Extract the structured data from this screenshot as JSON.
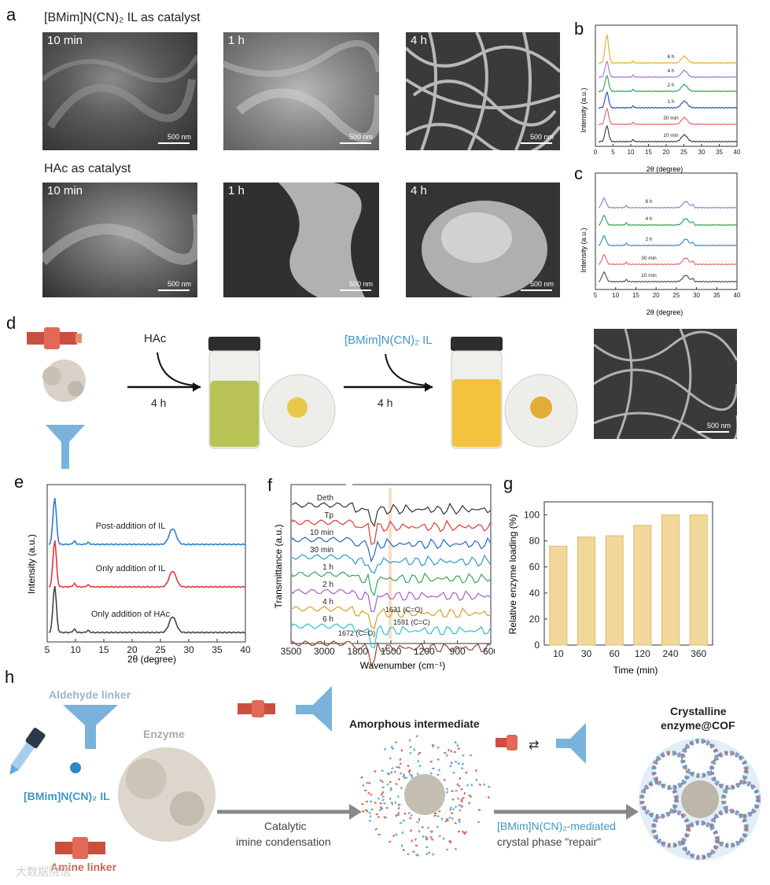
{
  "panels": {
    "a": "a",
    "b": "b",
    "c": "c",
    "d": "d",
    "e": "e",
    "f": "f",
    "g": "g",
    "h": "h"
  },
  "panel_a": {
    "row1_title": "[BMim]N(CN)₂ IL as catalyst",
    "row2_title": "HAc as catalyst",
    "row1_times": [
      "10 min",
      "1 h",
      "4 h"
    ],
    "row2_times": [
      "10 min",
      "1 h",
      "4 h"
    ],
    "scale_bar": "500 nm"
  },
  "panel_d": {
    "step1_reagent": "HAc",
    "step1_time": "4 h",
    "step2_reagent": "[BMim]N(CN)₂ IL",
    "step2_time": "4 h",
    "scale_bar": "500 nm"
  },
  "panel_h": {
    "aldehyde_label": "Aldehyde linker",
    "enzyme_label": "Enzyme",
    "il_label": "[BMim]N(CN)₂ IL",
    "amine_label": "Amine linker",
    "amorphous_label": "Amorphous intermediate",
    "crystalline_label_1": "Crystalline",
    "crystalline_label_2": "enzyme@COF",
    "arrow1_line1": "Catalytic",
    "arrow1_line2": "imine condensation",
    "arrow2_line1": "[BMim]N(CN)₂-mediated",
    "arrow2_line2": "crystal phase \"repair\"",
    "watermark": "大数据院信"
  },
  "chart_data": [
    {
      "id": "b",
      "type": "line",
      "xlabel": "2θ (degree)",
      "ylabel": "Intensity (a.u.)",
      "xlim": [
        0,
        40
      ],
      "xticks": [
        "0",
        "5",
        "10",
        "15",
        "20",
        "25",
        "30",
        "35",
        "40"
      ],
      "series": [
        {
          "name": "10 min",
          "color": "#444444"
        },
        {
          "name": "30 min",
          "color": "#e46f6f"
        },
        {
          "name": "1 h",
          "color": "#2f4fc9"
        },
        {
          "name": "2 h",
          "color": "#3aa65a"
        },
        {
          "name": "4 h",
          "color": "#a87ad6"
        },
        {
          "name": "6 h",
          "color": "#e3b23c"
        }
      ]
    },
    {
      "id": "c",
      "type": "line",
      "xlabel": "2θ (degree)",
      "ylabel": "Intensity (a.u.)",
      "xlim": [
        3,
        40
      ],
      "xticks": [
        "5",
        "10",
        "15",
        "20",
        "25",
        "30",
        "35",
        "40"
      ],
      "series": [
        {
          "name": "10 min",
          "color": "#555555"
        },
        {
          "name": "30 min",
          "color": "#e46f6f"
        },
        {
          "name": "2 h",
          "color": "#3c8fd0"
        },
        {
          "name": "4 h",
          "color": "#3aa65a"
        },
        {
          "name": "6 h",
          "color": "#a87ad6"
        }
      ]
    },
    {
      "id": "e",
      "type": "line",
      "xlabel": "2θ (degree)",
      "ylabel": "Intensity (a.u.)",
      "xlim": [
        3,
        40
      ],
      "xticks": [
        "5",
        "10",
        "15",
        "20",
        "25",
        "30",
        "35",
        "40"
      ],
      "series": [
        {
          "name": "Only addition of HAc",
          "color": "#444444"
        },
        {
          "name": "Only addition of IL",
          "color": "#e0393a"
        },
        {
          "name": "Post-addition of IL",
          "color": "#2a7fd0"
        }
      ]
    },
    {
      "id": "f",
      "type": "line",
      "xlabel": "Wavenumber (cm⁻¹)",
      "ylabel": "Transmittance (a.u.)",
      "xticks": [
        "3500",
        "3000",
        "1800",
        "1500",
        "1200",
        "900",
        "600"
      ],
      "series": [
        {
          "name": "Deth",
          "color": "#333333"
        },
        {
          "name": "Tp",
          "color": "#e0393a"
        },
        {
          "name": "10 min",
          "color": "#2a64c9"
        },
        {
          "name": "30 min",
          "color": "#2e9ad2"
        },
        {
          "name": "1 h",
          "color": "#3aa65a"
        },
        {
          "name": "2 h",
          "color": "#a060d0"
        },
        {
          "name": "4 h",
          "color": "#d9a020"
        },
        {
          "name": "6 h",
          "color": "#2cc4c4"
        },
        {
          "name": "",
          "color": "#8a4a3a"
        }
      ],
      "annotations": [
        "1672 (C=O)",
        "1631 (C=O)",
        "1591 (C=C)"
      ]
    },
    {
      "id": "g",
      "type": "bar",
      "xlabel": "Time (min)",
      "ylabel": "Relative  enzyme loading (%)",
      "categories": [
        "10",
        "30",
        "60",
        "120",
        "240",
        "360"
      ],
      "values": [
        76,
        83,
        84,
        92,
        100,
        100
      ],
      "ylim": [
        0,
        100
      ],
      "yticks": [
        "0",
        "20",
        "40",
        "60",
        "80",
        "100"
      ],
      "bar_color": "#f2d79a"
    }
  ]
}
